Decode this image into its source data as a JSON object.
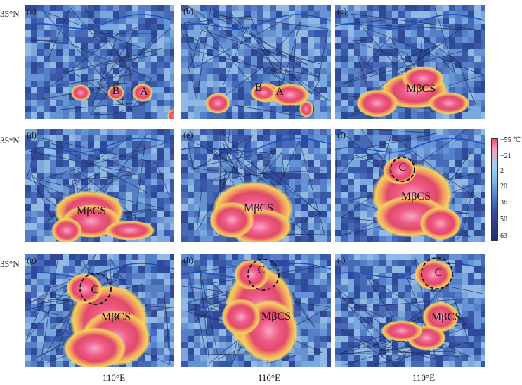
{
  "latitude_label": "35°N",
  "longitude_label": "110°E",
  "colorbar": {
    "ticks": [
      "−55 ℃",
      "−21",
      "2",
      "20",
      "36",
      "50",
      "63"
    ],
    "colors": [
      "#f04a78",
      "#f79ab6",
      "#9fd2ee",
      "#7db4e6",
      "#4f77c4",
      "#34479c",
      "#262d6a"
    ]
  },
  "panels": [
    {
      "label": "(a)",
      "annotations": [
        "B",
        "A"
      ]
    },
    {
      "label": "(b)",
      "annotations": [
        "B",
        "A"
      ]
    },
    {
      "label": "(c)",
      "annotations": [
        "MβCS"
      ]
    },
    {
      "label": "(d)",
      "annotations": [
        "MβCS"
      ]
    },
    {
      "label": "(e)",
      "annotations": [
        "MβCS"
      ]
    },
    {
      "label": "(f)",
      "annotations": [
        "C",
        "MβCS"
      ]
    },
    {
      "label": "(g)",
      "annotations": [
        "C",
        "MβCS"
      ]
    },
    {
      "label": "(h)",
      "annotations": [
        "C",
        "MβCS"
      ]
    },
    {
      "label": "(i)",
      "annotations": [
        "C",
        "MβCS"
      ]
    }
  ]
}
